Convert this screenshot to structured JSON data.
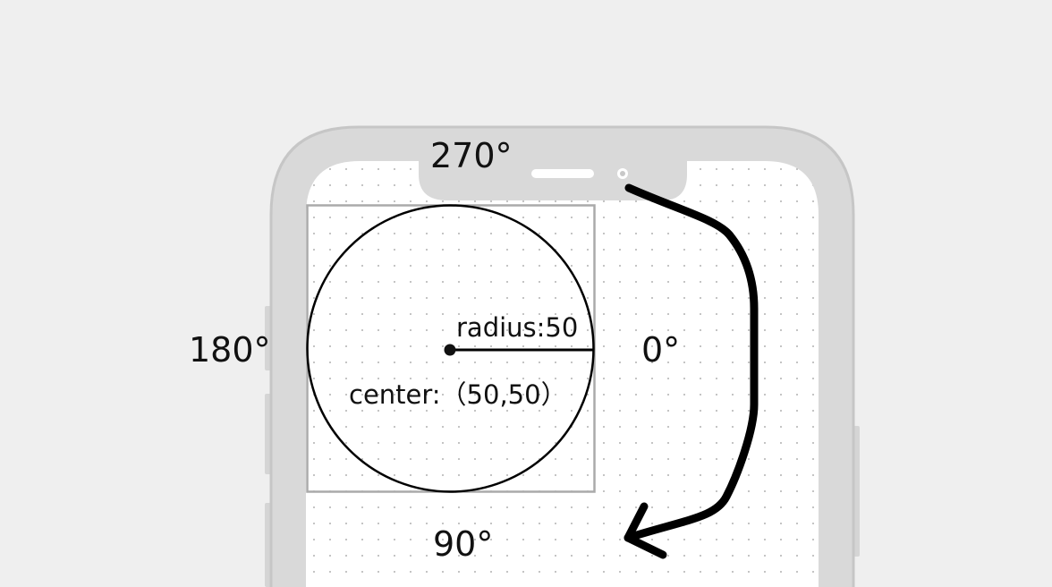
{
  "diagram": {
    "angles": {
      "top": "270°",
      "left": "180°",
      "right": "0°",
      "bottom": "90°"
    },
    "circle": {
      "radius_label": "radius:50",
      "center_label": "center:（50,50）"
    },
    "colors": {
      "background": "#efefef",
      "phone_frame": "#d9d9d9",
      "screen": "#ffffff",
      "stroke": "#000000",
      "bounding_box": "#aaaaaa"
    },
    "icons": [
      "phone-speaker-icon",
      "phone-camera-icon",
      "curved-arrow-icon"
    ]
  }
}
